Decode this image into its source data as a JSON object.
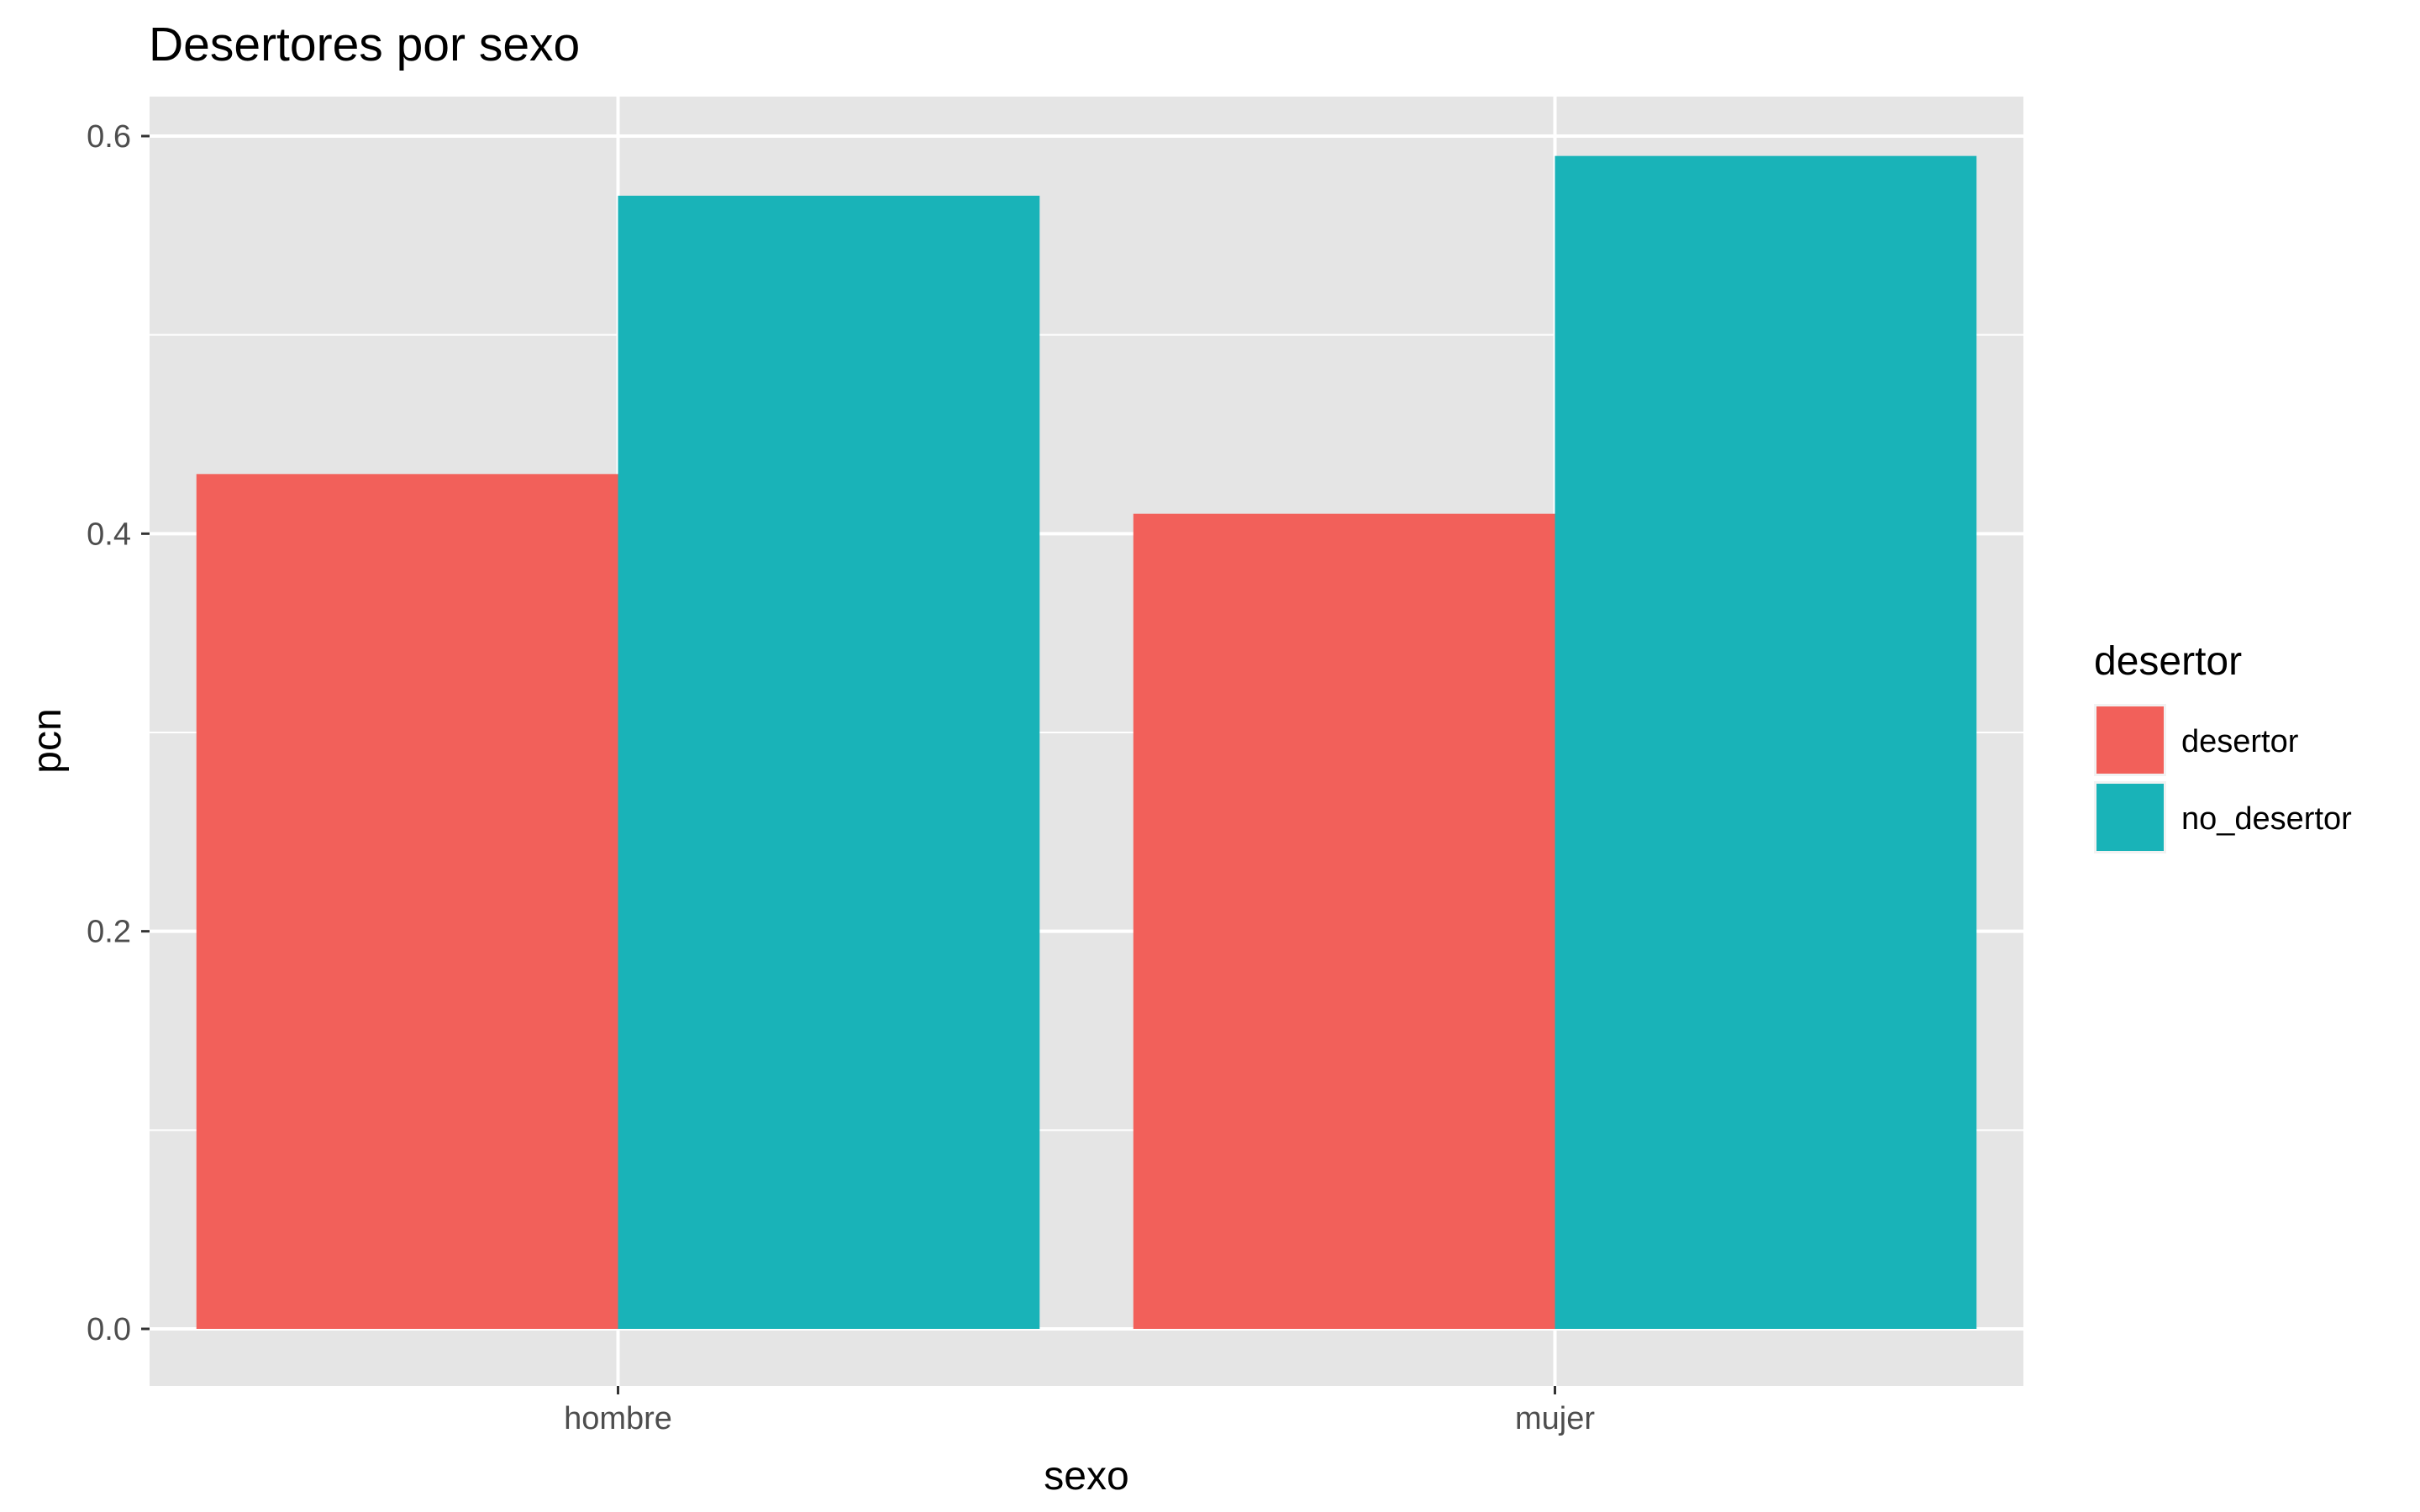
{
  "chart_data": {
    "type": "bar",
    "title": "Desertores por sexo",
    "xlabel": "sexo",
    "ylabel": "pcn",
    "categories": [
      "hombre",
      "mujer"
    ],
    "series": [
      {
        "name": "desertor",
        "values": [
          0.43,
          0.41
        ],
        "color": "#F2605A"
      },
      {
        "name": "no_desertor",
        "values": [
          0.57,
          0.59
        ],
        "color": "#19B3B8"
      }
    ],
    "ylim": [
      0,
      0.6
    ],
    "yticks": [
      "0.0",
      "0.2",
      "0.4",
      "0.6"
    ],
    "grid": true,
    "panel_background": "#E5E5E5",
    "legend": {
      "title": "desertor",
      "placement": "right"
    }
  }
}
